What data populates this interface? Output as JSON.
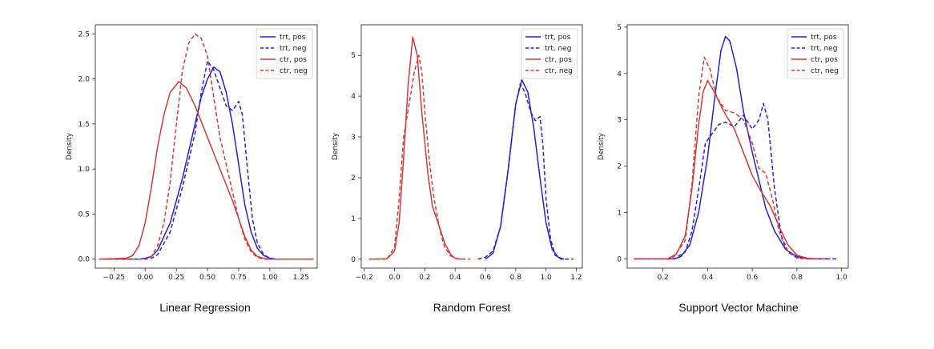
{
  "figure": {
    "captions": [
      "Linear Regression",
      "Random Forest",
      "Support Vector Machine"
    ]
  },
  "legend_style": {
    "trt_color": "#2a1fd6",
    "ctr_color": "#d33a3a",
    "pos_dash": "solid",
    "neg_dash": "dashed"
  },
  "chart_data": [
    {
      "type": "line",
      "caption": "Linear Regression",
      "ylabel": "Density",
      "xlim": [
        -0.4,
        1.38
      ],
      "ylim": [
        -0.1,
        2.6
      ],
      "xticks": [
        -0.25,
        0.0,
        0.25,
        0.5,
        0.75,
        1.0,
        1.25
      ],
      "xtick_labels": [
        "−0.25",
        "0.00",
        "0.25",
        "0.50",
        "0.75",
        "1.00",
        "1.25"
      ],
      "yticks": [
        0.0,
        0.5,
        1.0,
        1.5,
        2.0,
        2.5
      ],
      "ytick_labels": [
        "0.0",
        "0.5",
        "1.0",
        "1.5",
        "2.0",
        "2.5"
      ],
      "legend_position": "top-right",
      "series": [
        {
          "name": "trt, pos",
          "color": "#2a1fd6",
          "dash": "solid",
          "points": [
            [
              -0.37,
              0
            ],
            [
              -0.05,
              0
            ],
            [
              0.0,
              0.01
            ],
            [
              0.05,
              0.03
            ],
            [
              0.1,
              0.1
            ],
            [
              0.2,
              0.4
            ],
            [
              0.3,
              0.9
            ],
            [
              0.4,
              1.5
            ],
            [
              0.45,
              1.8
            ],
            [
              0.5,
              2.0
            ],
            [
              0.55,
              2.13
            ],
            [
              0.6,
              2.08
            ],
            [
              0.65,
              1.85
            ],
            [
              0.7,
              1.5
            ],
            [
              0.75,
              1.05
            ],
            [
              0.8,
              0.6
            ],
            [
              0.85,
              0.3
            ],
            [
              0.9,
              0.12
            ],
            [
              0.95,
              0.04
            ],
            [
              1.0,
              0.01
            ],
            [
              1.05,
              0
            ],
            [
              1.35,
              0
            ]
          ]
        },
        {
          "name": "trt, neg",
          "color": "#2a1fd6",
          "dash": "dashed",
          "points": [
            [
              -0.37,
              0
            ],
            [
              0.0,
              0
            ],
            [
              0.05,
              0.01
            ],
            [
              0.1,
              0.05
            ],
            [
              0.2,
              0.3
            ],
            [
              0.3,
              0.8
            ],
            [
              0.4,
              1.4
            ],
            [
              0.45,
              1.85
            ],
            [
              0.5,
              2.2
            ],
            [
              0.55,
              2.1
            ],
            [
              0.6,
              1.9
            ],
            [
              0.65,
              1.7
            ],
            [
              0.7,
              1.65
            ],
            [
              0.75,
              1.75
            ],
            [
              0.78,
              1.6
            ],
            [
              0.82,
              1.0
            ],
            [
              0.86,
              0.45
            ],
            [
              0.9,
              0.18
            ],
            [
              0.95,
              0.05
            ],
            [
              1.0,
              0.01
            ],
            [
              1.05,
              0
            ],
            [
              1.35,
              0
            ]
          ]
        },
        {
          "name": "ctr, pos",
          "color": "#d33a3a",
          "dash": "solid",
          "points": [
            [
              -0.37,
              0
            ],
            [
              -0.15,
              0.01
            ],
            [
              -0.1,
              0.04
            ],
            [
              -0.05,
              0.15
            ],
            [
              0.0,
              0.4
            ],
            [
              0.05,
              0.8
            ],
            [
              0.1,
              1.25
            ],
            [
              0.15,
              1.6
            ],
            [
              0.2,
              1.85
            ],
            [
              0.27,
              1.97
            ],
            [
              0.33,
              1.9
            ],
            [
              0.4,
              1.7
            ],
            [
              0.5,
              1.35
            ],
            [
              0.6,
              1.0
            ],
            [
              0.7,
              0.65
            ],
            [
              0.75,
              0.45
            ],
            [
              0.8,
              0.25
            ],
            [
              0.85,
              0.1
            ],
            [
              0.9,
              0.03
            ],
            [
              0.95,
              0.01
            ],
            [
              1.0,
              0
            ],
            [
              1.35,
              0
            ]
          ]
        },
        {
          "name": "ctr, neg",
          "color": "#d33a3a",
          "dash": "dashed",
          "points": [
            [
              -0.37,
              0
            ],
            [
              0.0,
              0
            ],
            [
              0.05,
              0.03
            ],
            [
              0.1,
              0.15
            ],
            [
              0.15,
              0.4
            ],
            [
              0.2,
              0.85
            ],
            [
              0.25,
              1.5
            ],
            [
              0.3,
              2.1
            ],
            [
              0.35,
              2.4
            ],
            [
              0.4,
              2.5
            ],
            [
              0.45,
              2.45
            ],
            [
              0.5,
              2.25
            ],
            [
              0.55,
              1.8
            ],
            [
              0.6,
              1.35
            ],
            [
              0.65,
              1.05
            ],
            [
              0.7,
              0.75
            ],
            [
              0.75,
              0.45
            ],
            [
              0.8,
              0.22
            ],
            [
              0.85,
              0.08
            ],
            [
              0.9,
              0.02
            ],
            [
              0.95,
              0
            ],
            [
              1.35,
              0
            ]
          ]
        }
      ]
    },
    {
      "type": "line",
      "caption": "Random Forest",
      "ylabel": "Density",
      "xlim": [
        -0.22,
        1.24
      ],
      "ylim": [
        -0.22,
        5.75
      ],
      "xticks": [
        -0.2,
        0.0,
        0.2,
        0.4,
        0.6,
        0.8,
        1.0,
        1.2
      ],
      "xtick_labels": [
        "−0.2",
        "0.0",
        "0.2",
        "0.4",
        "0.6",
        "0.8",
        "1.0",
        "1.2"
      ],
      "yticks": [
        0,
        1,
        2,
        3,
        4,
        5
      ],
      "ytick_labels": [
        "0",
        "1",
        "2",
        "3",
        "4",
        "5"
      ],
      "legend_position": "top-right",
      "series": [
        {
          "name": "trt, pos",
          "color": "#2a1fd6",
          "dash": "solid",
          "points": [
            [
              0.6,
              0
            ],
            [
              0.65,
              0.15
            ],
            [
              0.7,
              0.8
            ],
            [
              0.75,
              2.2
            ],
            [
              0.8,
              3.8
            ],
            [
              0.84,
              4.4
            ],
            [
              0.88,
              4.1
            ],
            [
              0.92,
              3.2
            ],
            [
              0.96,
              2.0
            ],
            [
              1.0,
              0.9
            ],
            [
              1.04,
              0.25
            ],
            [
              1.08,
              0.05
            ],
            [
              1.12,
              0
            ]
          ]
        },
        {
          "name": "trt, neg",
          "color": "#2a1fd6",
          "dash": "dashed",
          "points": [
            [
              0.55,
              0
            ],
            [
              0.6,
              0.05
            ],
            [
              0.65,
              0.2
            ],
            [
              0.7,
              0.8
            ],
            [
              0.75,
              2.2
            ],
            [
              0.8,
              3.8
            ],
            [
              0.83,
              4.3
            ],
            [
              0.86,
              4.1
            ],
            [
              0.9,
              3.6
            ],
            [
              0.93,
              3.4
            ],
            [
              0.96,
              3.5
            ],
            [
              0.98,
              2.8
            ],
            [
              1.0,
              1.5
            ],
            [
              1.03,
              0.5
            ],
            [
              1.06,
              0.1
            ],
            [
              1.1,
              0
            ],
            [
              1.18,
              0
            ]
          ]
        },
        {
          "name": "ctr, pos",
          "color": "#d33a3a",
          "dash": "solid",
          "points": [
            [
              -0.17,
              0
            ],
            [
              -0.05,
              0.01
            ],
            [
              0.0,
              0.2
            ],
            [
              0.03,
              0.9
            ],
            [
              0.06,
              2.5
            ],
            [
              0.09,
              4.3
            ],
            [
              0.12,
              5.45
            ],
            [
              0.15,
              5.0
            ],
            [
              0.18,
              3.6
            ],
            [
              0.22,
              2.1
            ],
            [
              0.25,
              1.3
            ],
            [
              0.3,
              0.75
            ],
            [
              0.33,
              0.4
            ],
            [
              0.37,
              0.12
            ],
            [
              0.4,
              0.02
            ],
            [
              0.45,
              0
            ]
          ]
        },
        {
          "name": "ctr, neg",
          "color": "#d33a3a",
          "dash": "dashed",
          "points": [
            [
              -0.17,
              0
            ],
            [
              -0.05,
              0
            ],
            [
              0.0,
              0.3
            ],
            [
              0.03,
              1.5
            ],
            [
              0.06,
              3.0
            ],
            [
              0.1,
              3.9
            ],
            [
              0.13,
              4.6
            ],
            [
              0.16,
              5.0
            ],
            [
              0.18,
              4.6
            ],
            [
              0.2,
              3.6
            ],
            [
              0.23,
              2.4
            ],
            [
              0.26,
              1.5
            ],
            [
              0.3,
              0.7
            ],
            [
              0.33,
              0.3
            ],
            [
              0.37,
              0.08
            ],
            [
              0.42,
              0
            ],
            [
              0.5,
              0
            ]
          ]
        }
      ]
    },
    {
      "type": "line",
      "caption": "Support Vector Machine",
      "ylabel": "Density",
      "xlim": [
        0.04,
        1.03
      ],
      "ylim": [
        -0.2,
        5.05
      ],
      "xticks": [
        0.2,
        0.4,
        0.6,
        0.8,
        1.0
      ],
      "xtick_labels": [
        "0.2",
        "0.4",
        "0.6",
        "0.8",
        "1.0"
      ],
      "yticks": [
        0,
        1,
        2,
        3,
        4,
        5
      ],
      "ytick_labels": [
        "0",
        "1",
        "2",
        "3",
        "4",
        "5"
      ],
      "legend_position": "top-right",
      "series": [
        {
          "name": "trt, pos",
          "color": "#2a1fd6",
          "dash": "solid",
          "points": [
            [
              0.07,
              0
            ],
            [
              0.25,
              0
            ],
            [
              0.28,
              0.05
            ],
            [
              0.32,
              0.3
            ],
            [
              0.36,
              1.0
            ],
            [
              0.4,
              2.2
            ],
            [
              0.43,
              3.4
            ],
            [
              0.46,
              4.5
            ],
            [
              0.48,
              4.8
            ],
            [
              0.5,
              4.7
            ],
            [
              0.53,
              4.1
            ],
            [
              0.56,
              3.2
            ],
            [
              0.6,
              2.3
            ],
            [
              0.63,
              1.7
            ],
            [
              0.66,
              1.1
            ],
            [
              0.7,
              0.6
            ],
            [
              0.75,
              0.2
            ],
            [
              0.8,
              0.05
            ],
            [
              0.85,
              0
            ],
            [
              0.95,
              0
            ]
          ]
        },
        {
          "name": "trt, neg",
          "color": "#2a1fd6",
          "dash": "dashed",
          "points": [
            [
              0.07,
              0
            ],
            [
              0.25,
              0
            ],
            [
              0.3,
              0.15
            ],
            [
              0.33,
              0.6
            ],
            [
              0.36,
              1.5
            ],
            [
              0.39,
              2.5
            ],
            [
              0.42,
              2.7
            ],
            [
              0.45,
              2.9
            ],
            [
              0.48,
              2.95
            ],
            [
              0.52,
              2.85
            ],
            [
              0.56,
              3.1
            ],
            [
              0.6,
              2.8
            ],
            [
              0.63,
              3.0
            ],
            [
              0.65,
              3.35
            ],
            [
              0.67,
              3.0
            ],
            [
              0.7,
              1.5
            ],
            [
              0.73,
              0.5
            ],
            [
              0.76,
              0.15
            ],
            [
              0.8,
              0.02
            ],
            [
              0.85,
              0
            ],
            [
              0.98,
              0
            ]
          ]
        },
        {
          "name": "ctr, pos",
          "color": "#d33a3a",
          "dash": "solid",
          "points": [
            [
              0.07,
              0
            ],
            [
              0.22,
              0
            ],
            [
              0.26,
              0.1
            ],
            [
              0.3,
              0.5
            ],
            [
              0.33,
              1.5
            ],
            [
              0.36,
              2.9
            ],
            [
              0.38,
              3.6
            ],
            [
              0.4,
              3.85
            ],
            [
              0.43,
              3.6
            ],
            [
              0.47,
              3.2
            ],
            [
              0.52,
              2.8
            ],
            [
              0.56,
              2.3
            ],
            [
              0.6,
              1.8
            ],
            [
              0.64,
              1.45
            ],
            [
              0.68,
              1.15
            ],
            [
              0.72,
              0.7
            ],
            [
              0.76,
              0.3
            ],
            [
              0.8,
              0.08
            ],
            [
              0.85,
              0.01
            ],
            [
              0.9,
              0
            ]
          ]
        },
        {
          "name": "ctr, neg",
          "color": "#d33a3a",
          "dash": "dashed",
          "points": [
            [
              0.07,
              0
            ],
            [
              0.22,
              0
            ],
            [
              0.25,
              0.05
            ],
            [
              0.3,
              0.4
            ],
            [
              0.33,
              1.6
            ],
            [
              0.36,
              3.5
            ],
            [
              0.385,
              4.35
            ],
            [
              0.41,
              4.1
            ],
            [
              0.44,
              3.5
            ],
            [
              0.48,
              3.2
            ],
            [
              0.52,
              3.15
            ],
            [
              0.56,
              3.0
            ],
            [
              0.6,
              2.5
            ],
            [
              0.63,
              1.95
            ],
            [
              0.66,
              1.85
            ],
            [
              0.69,
              1.3
            ],
            [
              0.72,
              0.6
            ],
            [
              0.75,
              0.2
            ],
            [
              0.8,
              0.03
            ],
            [
              0.85,
              0
            ],
            [
              0.95,
              0
            ]
          ]
        }
      ]
    }
  ]
}
